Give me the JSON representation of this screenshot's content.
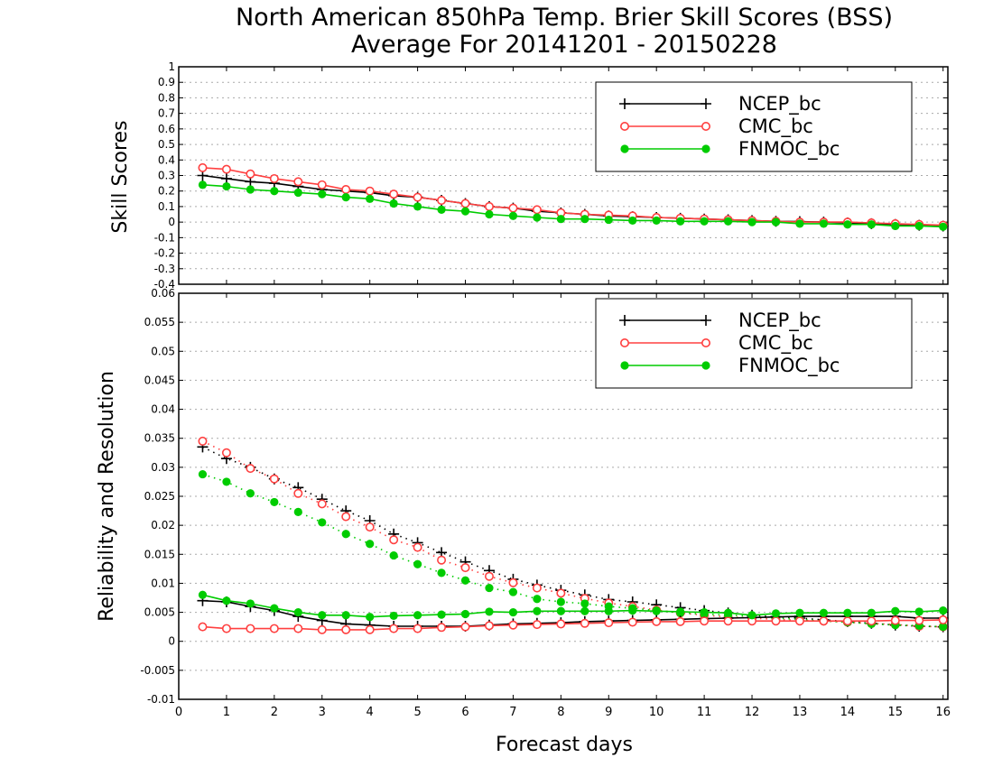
{
  "chart_data": [
    {
      "type": "line",
      "title": "North American 850hPa Temp. Brier Skill Scores (BSS)",
      "subtitle": "Average For 20141201 - 20150228",
      "xlabel": "",
      "ylabel": "Skill Scores",
      "xlim": [
        0,
        16.1
      ],
      "ylim": [
        -0.4,
        1.0
      ],
      "y_ticks": [
        "-0.4",
        "-0.3",
        "-0.2",
        "-0.1",
        "0",
        "0.1",
        "0.2",
        "0.3",
        "0.4",
        "0.5",
        "0.6",
        "0.7",
        "0.8",
        "0.9",
        "1"
      ],
      "grid": true,
      "legend_position": "top-right",
      "x": [
        0.5,
        1,
        1.5,
        2,
        2.5,
        3,
        3.5,
        4,
        4.5,
        5,
        5.5,
        6,
        6.5,
        7,
        7.5,
        8,
        8.5,
        9,
        9.5,
        10,
        10.5,
        11,
        11.5,
        12,
        12.5,
        13,
        13.5,
        14,
        14.5,
        15,
        15.5,
        16
      ],
      "series": [
        {
          "name": "NCEP_bc",
          "color": "#000000",
          "marker": "plus",
          "values": [
            0.3,
            0.28,
            0.26,
            0.25,
            0.23,
            0.21,
            0.2,
            0.19,
            0.17,
            0.16,
            0.14,
            0.12,
            0.1,
            0.09,
            0.07,
            0.06,
            0.05,
            0.04,
            0.035,
            0.03,
            0.025,
            0.02,
            0.015,
            0.01,
            0.005,
            0.003,
            0.0,
            -0.005,
            -0.01,
            -0.015,
            -0.02,
            -0.025
          ]
        },
        {
          "name": "CMC_bc",
          "color": "#ff4040",
          "marker": "open-circle",
          "values": [
            0.35,
            0.34,
            0.31,
            0.28,
            0.26,
            0.24,
            0.21,
            0.2,
            0.18,
            0.16,
            0.14,
            0.12,
            0.1,
            0.09,
            0.08,
            0.06,
            0.05,
            0.045,
            0.04,
            0.03,
            0.025,
            0.02,
            0.015,
            0.01,
            0.005,
            0.0,
            0.0,
            0.0,
            -0.005,
            -0.01,
            -0.015,
            -0.02
          ]
        },
        {
          "name": "FNMOC_bc",
          "color": "#00cc00",
          "marker": "filled-circle",
          "values": [
            0.24,
            0.23,
            0.21,
            0.2,
            0.19,
            0.18,
            0.16,
            0.15,
            0.12,
            0.1,
            0.08,
            0.07,
            0.05,
            0.04,
            0.03,
            0.02,
            0.02,
            0.015,
            0.01,
            0.01,
            0.005,
            0.005,
            0.005,
            0.0,
            0.0,
            -0.01,
            -0.01,
            -0.015,
            -0.015,
            -0.025,
            -0.025,
            -0.03
          ]
        }
      ]
    },
    {
      "type": "line",
      "title": "",
      "xlabel": "Forecast days",
      "ylabel": "Reliability and Resolution",
      "xlim": [
        0,
        16.1
      ],
      "ylim": [
        -0.01,
        0.06
      ],
      "x_ticks": [
        "0",
        "1",
        "2",
        "3",
        "4",
        "5",
        "6",
        "7",
        "8",
        "9",
        "10",
        "11",
        "12",
        "13",
        "14",
        "15",
        "16"
      ],
      "y_ticks": [
        "-0.01",
        "-0.005",
        "0",
        "0.005",
        "0.01",
        "0.015",
        "0.02",
        "0.025",
        "0.03",
        "0.035",
        "0.04",
        "0.045",
        "0.05",
        "0.055",
        "0.06"
      ],
      "grid": true,
      "legend_position": "top-right",
      "x": [
        0.5,
        1,
        1.5,
        2,
        2.5,
        3,
        3.5,
        4,
        4.5,
        5,
        5.5,
        6,
        6.5,
        7,
        7.5,
        8,
        8.5,
        9,
        9.5,
        10,
        10.5,
        11,
        11.5,
        12,
        12.5,
        13,
        13.5,
        14,
        14.5,
        15,
        15.5,
        16
      ],
      "series": [
        {
          "name": "NCEP_bc",
          "component": "resolution",
          "style": "dotted",
          "color": "#000000",
          "marker": "plus",
          "values": [
            0.0335,
            0.0315,
            0.03,
            0.028,
            0.0265,
            0.0245,
            0.0225,
            0.0208,
            0.0185,
            0.017,
            0.0153,
            0.0137,
            0.0122,
            0.0107,
            0.0097,
            0.0088,
            0.008,
            0.0072,
            0.0068,
            0.0063,
            0.0058,
            0.0053,
            0.0049,
            0.0045,
            0.0042,
            0.004,
            0.0037,
            0.0034,
            0.0031,
            0.0028,
            0.0026,
            0.0025
          ]
        },
        {
          "name": "CMC_bc",
          "component": "resolution",
          "style": "dotted",
          "color": "#ff4040",
          "marker": "open-circle",
          "values": [
            0.0345,
            0.0325,
            0.0298,
            0.028,
            0.0255,
            0.0237,
            0.0215,
            0.0197,
            0.0175,
            0.0162,
            0.014,
            0.0127,
            0.0112,
            0.0101,
            0.0092,
            0.0083,
            0.0074,
            0.0066,
            0.006,
            0.0054,
            0.0049,
            0.0045,
            0.0042,
            0.004,
            0.0038,
            0.0036,
            0.0035,
            0.0033,
            0.0031,
            0.0029,
            0.0026,
            0.0025
          ]
        },
        {
          "name": "FNMOC_bc",
          "component": "resolution",
          "style": "dotted",
          "color": "#00cc00",
          "marker": "filled-circle",
          "values": [
            0.0288,
            0.0275,
            0.0255,
            0.024,
            0.0223,
            0.0205,
            0.0185,
            0.0168,
            0.0148,
            0.0133,
            0.0118,
            0.0105,
            0.0092,
            0.0085,
            0.0073,
            0.0068,
            0.0065,
            0.006,
            0.0057,
            0.0053,
            0.0049,
            0.0047,
            0.0045,
            0.0043,
            0.004,
            0.0038,
            0.0035,
            0.0033,
            0.003,
            0.0028,
            0.0027,
            0.0025
          ]
        },
        {
          "name": "NCEP_bc",
          "component": "reliability",
          "style": "solid",
          "color": "#000000",
          "marker": "plus",
          "values": [
            0.007,
            0.0068,
            0.006,
            0.0053,
            0.0043,
            0.0036,
            0.003,
            0.0028,
            0.0026,
            0.0026,
            0.0026,
            0.0026,
            0.0028,
            0.003,
            0.0031,
            0.0032,
            0.0034,
            0.0035,
            0.0036,
            0.0037,
            0.0038,
            0.0039,
            0.004,
            0.0041,
            0.0042,
            0.0043,
            0.0043,
            0.0043,
            0.0043,
            0.0043,
            0.004,
            0.004
          ]
        },
        {
          "name": "CMC_bc",
          "component": "reliability",
          "style": "solid",
          "color": "#ff4040",
          "marker": "open-circle",
          "values": [
            0.0025,
            0.0022,
            0.0022,
            0.0022,
            0.0022,
            0.002,
            0.002,
            0.002,
            0.0022,
            0.0022,
            0.0024,
            0.0025,
            0.0027,
            0.0028,
            0.0029,
            0.003,
            0.0031,
            0.0032,
            0.0033,
            0.0034,
            0.0034,
            0.0035,
            0.0035,
            0.0035,
            0.0035,
            0.0035,
            0.0035,
            0.0035,
            0.0035,
            0.0036,
            0.0036,
            0.0037
          ]
        },
        {
          "name": "FNMOC_bc",
          "component": "reliability",
          "style": "solid",
          "color": "#00cc00",
          "marker": "filled-circle",
          "values": [
            0.008,
            0.007,
            0.0065,
            0.0057,
            0.005,
            0.0045,
            0.0045,
            0.0042,
            0.0044,
            0.0045,
            0.0046,
            0.0047,
            0.0051,
            0.005,
            0.0052,
            0.0052,
            0.0052,
            0.0052,
            0.0053,
            0.0052,
            0.0051,
            0.005,
            0.0049,
            0.0045,
            0.0048,
            0.0049,
            0.0049,
            0.0049,
            0.0049,
            0.0052,
            0.0051,
            0.0053
          ]
        }
      ]
    }
  ]
}
